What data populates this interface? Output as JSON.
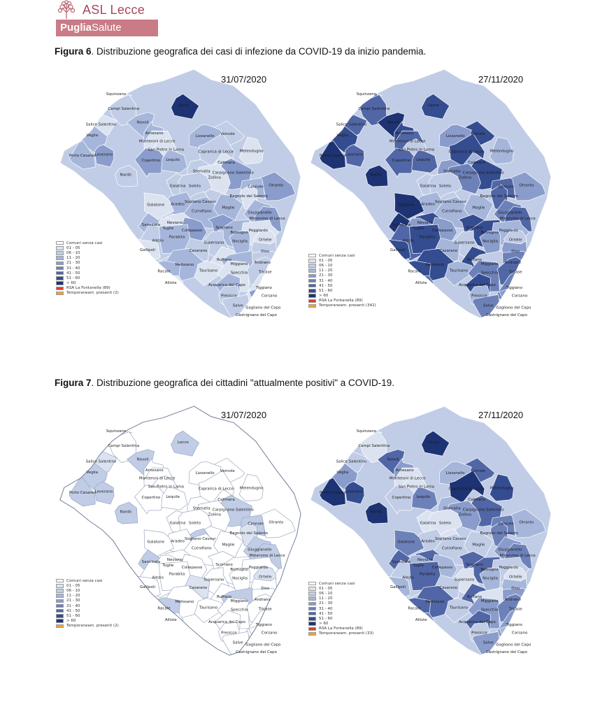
{
  "logo": {
    "name": "ASL Lecce",
    "band_bold": "Puglia",
    "band_rest": "Salute"
  },
  "figure6": {
    "label": "Figura 6",
    "text": ". Distribuzione  geografica dei  casi di infezione  da  COVID-19 da inizio pandemia.",
    "left_date": "31/07/2020",
    "right_date": "27/11/2020",
    "left_legend": [
      "Comuni senza casi",
      "01 - 05",
      "06 - 10",
      "11 - 20",
      "21 - 30",
      "31 - 40",
      "41 - 50",
      "51 - 60",
      "> 60",
      "RSA La Fontanella (89)",
      "Temporaneam. presenti (2)"
    ],
    "right_legend": [
      "Comuni senza casi",
      "01 - 05",
      "06 - 10",
      "11 - 20",
      "21 - 30",
      "31 - 40",
      "41 - 50",
      "51 - 60",
      "> 60",
      "RSA La Fontanella (89)",
      "Temporaneam. presenti (342)"
    ]
  },
  "figure7": {
    "label": "Figura 7",
    "text": ". Distribuzione  geografica dei cittadini \"attualmente positivi\" a COVID-19.",
    "left_date": "31/07/2020",
    "right_date": "27/11/2020",
    "left_legend": [
      "Comuni senza casi",
      "01 - 05",
      "06 - 10",
      "11 - 20",
      "21 - 30",
      "31 - 40",
      "41 - 50",
      "51 - 60",
      "> 60",
      "Temporaneam. presenti (2)"
    ],
    "right_legend": [
      "Comuni senza casi",
      "01 - 05",
      "06 - 10",
      "11 - 20",
      "21 - 30",
      "31 - 40",
      "41 - 50",
      "51 - 60",
      "> 60",
      "RSA La Fontanella (89)",
      "Temporaneam. presenti (33)"
    ]
  },
  "legend_colors": [
    "#ffffff",
    "#dbe3f1",
    "#c1cde6",
    "#a6b6db",
    "#8a9ccb",
    "#6d81b9",
    "#5166a6",
    "#344c90",
    "#1d3373"
  ],
  "legend_colors_extra": [
    "#e23b2a",
    "#f2a33a"
  ],
  "places": [
    "Squinzano",
    "Lecce",
    "Campi Salentina",
    "Novoli",
    "Salice Salentino",
    "Veglia",
    "Arnesano",
    "Vernole",
    "Monteroni di Lecce",
    "Lizzanello",
    "San Pietro in Lama",
    "Porto Cesareo",
    "Leverano",
    "Caprarica di Lecce",
    "Melendugno",
    "Copertino",
    "Lequile",
    "Calimera",
    "Nardò",
    "Sternatia",
    "Carpignano Salentino",
    "Zollino",
    "Galatina",
    "Soleto",
    "Cannole",
    "Otranto",
    "Bagnolo del Salento",
    "Sogliano Cavour",
    "Aradeo",
    "Cutrofiano",
    "Maglie",
    "Galatone",
    "Giuggianello",
    "Minervino di Lecce",
    "Neviano",
    "Sannicola",
    "Tuglie",
    "Collepasso",
    "Scorrano",
    "Botrugno",
    "Poggiardo",
    "Alezio",
    "Parabita",
    "Supersano",
    "Nociglia",
    "Ortelle",
    "Gallipoli",
    "Casarano",
    "Diso",
    "Ruffano",
    "Andrano",
    "Melissano",
    "Miggiano",
    "Racale",
    "Taurisano",
    "Specchia",
    "Tricase",
    "Alliste",
    "Acquarica del Capo",
    "Tiggiano",
    "Corsano",
    "Presicce",
    "Salve",
    "Gagliano del Capo",
    "Castrignano del Capo"
  ]
}
